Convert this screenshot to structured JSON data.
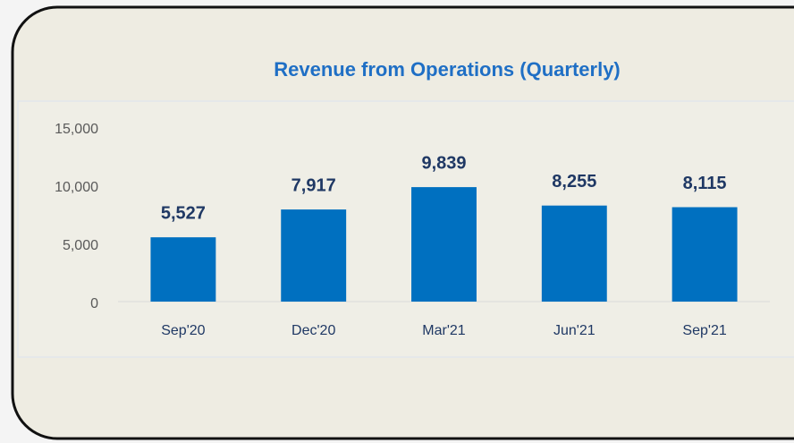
{
  "chart_data": {
    "type": "bar",
    "title": "Revenue from Operations (Quarterly)",
    "categories": [
      "Sep'20",
      "Dec'20",
      "Mar'21",
      "Jun'21",
      "Sep'21"
    ],
    "values": [
      5527,
      7917,
      9839,
      8255,
      8115
    ],
    "value_labels": [
      "5,527",
      "7,917",
      "9,839",
      "8,255",
      "8,115"
    ],
    "color": "#0070c0",
    "ylim": [
      0,
      15000
    ],
    "yticks": [
      0,
      {
        "value": 5000,
        "label": "5,000"
      },
      {
        "value": 10000,
        "label": "10,000"
      },
      {
        "value": 15000,
        "label": "15,000"
      }
    ],
    "grid": false
  }
}
